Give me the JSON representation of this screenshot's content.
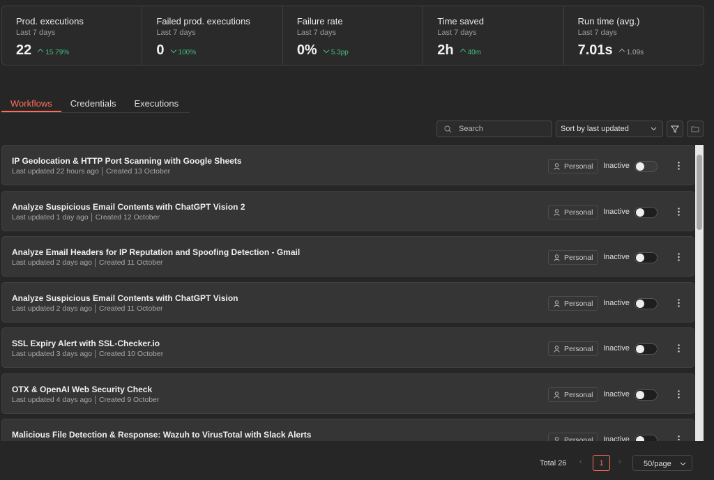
{
  "stats": [
    {
      "title": "Prod. executions",
      "subtitle": "Last 7 days",
      "value": "22",
      "delta": "15.79%"
    },
    {
      "title": "Failed prod. executions",
      "subtitle": "Last 7 days",
      "value": "0",
      "delta": "100%"
    },
    {
      "title": "Failure rate",
      "subtitle": "Last 7 days",
      "value": "0%",
      "delta": "5.3pp"
    },
    {
      "title": "Time saved",
      "subtitle": "Last 7 days",
      "value": "2h",
      "delta": "40m"
    },
    {
      "title": "Run time (avg.)",
      "subtitle": "Last 7 days",
      "value": "7.01s",
      "delta": "1.09s"
    }
  ],
  "tabs": [
    "Workflows",
    "Credentials",
    "Executions"
  ],
  "search_placeholder": "Search",
  "sort": "Sort by last updated",
  "workflows": [
    {
      "name": "IP Geolocation & HTTP Port Scanning with Google Sheets",
      "updated": "Last updated 22 hours ago",
      "created": "Created 13 October",
      "owner": "Personal",
      "status": "Inactive"
    },
    {
      "name": "Analyze Suspicious Email Contents with ChatGPT Vision 2",
      "updated": "Last updated 1 day ago",
      "created": "Created 12 October",
      "owner": "Personal",
      "status": "Inactive"
    },
    {
      "name": "Analyze Email Headers for IP Reputation and Spoofing Detection - Gmail",
      "updated": "Last updated 2 days ago",
      "created": "Created 11 October",
      "owner": "Personal",
      "status": "Inactive"
    },
    {
      "name": "Analyze Suspicious Email Contents with ChatGPT Vision",
      "updated": "Last updated 2 days ago",
      "created": "Created 11 October",
      "owner": "Personal",
      "status": "Inactive"
    },
    {
      "name": "SSL Expiry Alert with SSL-Checker.io",
      "updated": "Last updated 3 days ago",
      "created": "Created 10 October",
      "owner": "Personal",
      "status": "Inactive"
    },
    {
      "name": "OTX & OpenAI Web Security Check",
      "updated": "Last updated 4 days ago",
      "created": "Created 9 October",
      "owner": "Personal",
      "status": "Inactive"
    },
    {
      "name": "Malicious File Detection & Response: Wazuh to VirusTotal with Slack Alerts",
      "updated": "",
      "created": "",
      "owner": "Personal",
      "status": "Inactive"
    }
  ],
  "pagination": {
    "total": "Total 26",
    "page": "1",
    "per_page": "50/page"
  }
}
